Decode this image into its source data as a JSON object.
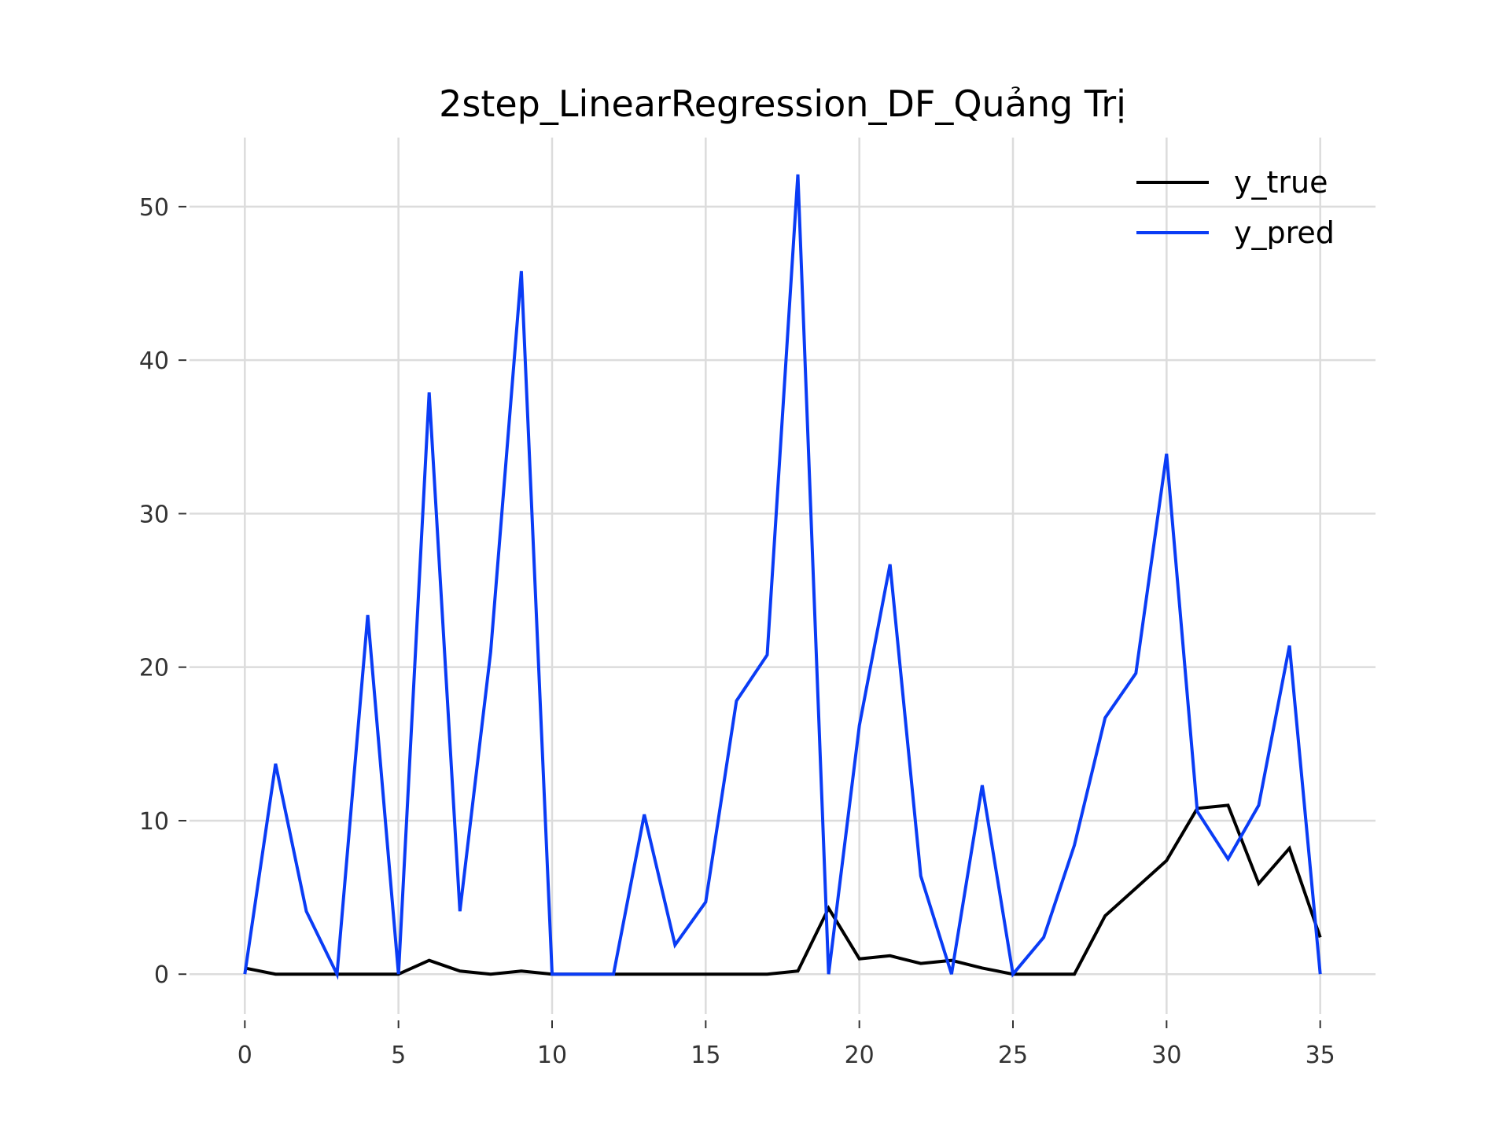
{
  "chart_data": {
    "type": "line",
    "title": "2step_LinearRegression_DF_Quảng Trị",
    "xlabel": "",
    "ylabel": "",
    "xlim": [
      -1.8,
      36.8
    ],
    "ylim": [
      -2.6,
      54.5
    ],
    "x_ticks": [
      0,
      5,
      10,
      15,
      20,
      25,
      30,
      35
    ],
    "y_ticks": [
      0,
      10,
      20,
      30,
      40,
      50
    ],
    "grid": true,
    "legend_position": "top-right",
    "x": [
      0,
      1,
      2,
      3,
      4,
      5,
      6,
      7,
      8,
      9,
      10,
      11,
      12,
      13,
      14,
      15,
      16,
      17,
      18,
      19,
      20,
      21,
      22,
      23,
      24,
      25,
      26,
      27,
      28,
      29,
      30,
      31,
      32,
      33,
      34,
      35
    ],
    "series": [
      {
        "name": "y_true",
        "color": "#000000",
        "values": [
          0.4,
          0,
          0,
          0,
          0,
          0,
          0.9,
          0.2,
          0,
          0.2,
          0,
          0,
          0,
          0,
          0,
          0,
          0,
          0,
          0.2,
          4.3,
          1.0,
          1.2,
          0.7,
          0.9,
          0.4,
          0,
          0,
          0,
          3.8,
          5.6,
          7.4,
          10.8,
          11.0,
          5.9,
          8.2,
          2.4
        ]
      },
      {
        "name": "y_pred",
        "color": "#0a3cf5",
        "values": [
          0,
          13.7,
          4.1,
          0,
          23.4,
          0,
          37.9,
          4.1,
          21.0,
          45.8,
          0,
          0,
          0,
          10.4,
          1.9,
          4.7,
          17.8,
          20.8,
          52.1,
          0,
          16.2,
          26.7,
          6.4,
          0,
          12.3,
          0,
          2.4,
          8.4,
          16.7,
          19.6,
          33.9,
          10.6,
          7.5,
          11.0,
          21.4,
          0
        ]
      }
    ]
  }
}
